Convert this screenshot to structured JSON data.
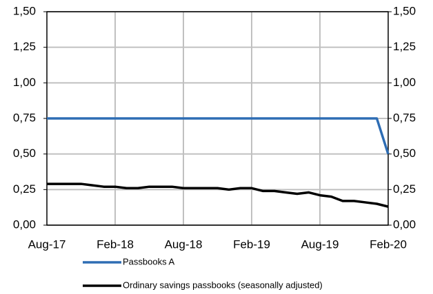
{
  "chart_data": {
    "type": "line",
    "categories": [
      "Aug-17",
      null,
      null,
      null,
      null,
      null,
      "Feb-18",
      null,
      null,
      null,
      null,
      null,
      "Aug-18",
      null,
      null,
      null,
      null,
      null,
      "Feb-19",
      null,
      null,
      null,
      null,
      null,
      "Aug-19",
      null,
      null,
      null,
      null,
      null,
      "Feb-20"
    ],
    "series": [
      {
        "name": "Passbooks A",
        "color": "#2e6db4",
        "values": [
          0.75,
          0.75,
          0.75,
          0.75,
          0.75,
          0.75,
          0.75,
          0.75,
          0.75,
          0.75,
          0.75,
          0.75,
          0.75,
          0.75,
          0.75,
          0.75,
          0.75,
          0.75,
          0.75,
          0.75,
          0.75,
          0.75,
          0.75,
          0.75,
          0.75,
          0.75,
          0.75,
          0.75,
          0.75,
          0.75,
          0.5
        ]
      },
      {
        "name": "Ordinary savings passbooks (seasonally adjusted)",
        "color": "#000000",
        "values": [
          0.29,
          0.29,
          0.29,
          0.29,
          0.28,
          0.27,
          0.27,
          0.26,
          0.26,
          0.27,
          0.27,
          0.27,
          0.26,
          0.26,
          0.26,
          0.26,
          0.25,
          0.26,
          0.26,
          0.24,
          0.24,
          0.23,
          0.22,
          0.23,
          0.21,
          0.2,
          0.17,
          0.17,
          0.16,
          0.15,
          0.13
        ]
      }
    ],
    "ylim": [
      0,
      1.5
    ],
    "yticks": [
      {
        "value": 0,
        "label": "0,00"
      },
      {
        "value": 0.25,
        "label": "0,25"
      },
      {
        "value": 0.5,
        "label": "0,50"
      },
      {
        "value": 0.75,
        "label": "0,75"
      },
      {
        "value": 1,
        "label": "1,00"
      },
      {
        "value": 1.25,
        "label": "1,25"
      },
      {
        "value": 1.5,
        "label": "1,50"
      }
    ],
    "y2lim": [
      0,
      1.5
    ],
    "y2ticks": [
      {
        "value": 0,
        "label": "0,00"
      },
      {
        "value": 0.25,
        "label": "0,25"
      },
      {
        "value": 0.5,
        "label": "0,50"
      },
      {
        "value": 0.75,
        "label": "0,75"
      },
      {
        "value": 1,
        "label": "1,00"
      },
      {
        "value": 1.25,
        "label": "1,25"
      },
      {
        "value": 1.5,
        "label": "1,50"
      }
    ],
    "grid": true
  }
}
